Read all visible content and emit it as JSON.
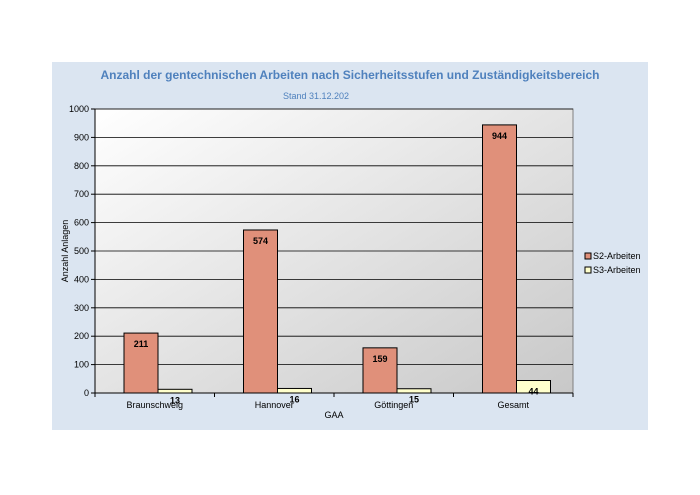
{
  "chart_data": {
    "type": "bar",
    "title": "Anzahl der gentechnischen Arbeiten nach Sicherheitsstufen und Zuständigkeitsbereich",
    "subtitle": "Stand 31.12.202",
    "xlabel": "GAA",
    "ylabel": "Anzahl Anlagen",
    "ylim": [
      0,
      1000
    ],
    "yticks": [
      0,
      100,
      200,
      300,
      400,
      500,
      600,
      700,
      800,
      900,
      1000
    ],
    "grid": true,
    "legend_position": "right",
    "categories": [
      "Braunschweig",
      "Hannover",
      "Göttingen",
      "Gesamt"
    ],
    "series": [
      {
        "name": "S2-Arbeiten",
        "values": [
          211,
          574,
          159,
          944
        ],
        "color": "#e0907a"
      },
      {
        "name": "S3-Arbeiten",
        "values": [
          13,
          16,
          15,
          44
        ],
        "color": "#ffffcc"
      }
    ]
  },
  "colors": {
    "panel_background": "#dbe5f1",
    "plot_background": "#e8e8e8",
    "title": "#4f81bd"
  }
}
